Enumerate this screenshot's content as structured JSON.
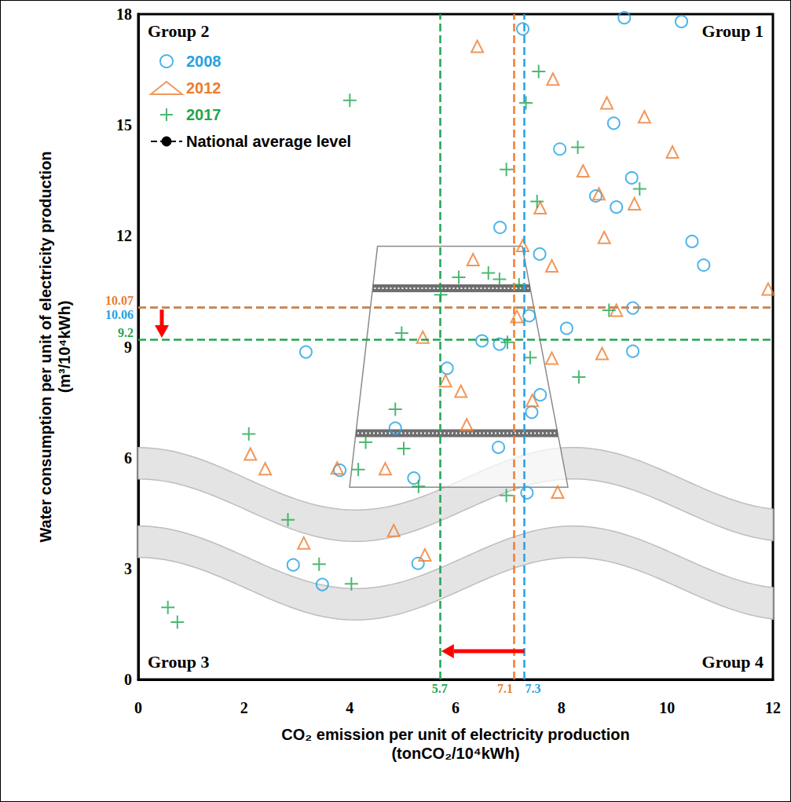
{
  "chart_data": {
    "type": "scatter",
    "x_label": "CO₂ emission per unit of electricity production\n(tonCO₂/10⁴kWh)",
    "y_label": "Water consumption per unit of electricity production\n(m³/10⁴kWh)",
    "xlim": [
      0,
      12
    ],
    "xticks": [
      0,
      2,
      4,
      6,
      8,
      10,
      12
    ],
    "ylim": [
      0,
      18
    ],
    "yticks": [
      0,
      3,
      6,
      9,
      12,
      15,
      18
    ],
    "grid": false,
    "legend": "top-left",
    "annotations": [
      "Group 1",
      "Group 2",
      "Group 3",
      "Group 4"
    ],
    "average_line": {
      "name": "National average level",
      "color": "#000000",
      "line_style": "dashed"
    },
    "series": [
      {
        "name": "2008",
        "color": "#22a3e3",
        "marker": "circle",
        "average_x": 7.3,
        "average_y": 10.06,
        "points": [
          [
            7.27,
            17.6
          ],
          [
            9.19,
            17.9
          ],
          [
            10.27,
            17.8
          ],
          [
            8.99,
            15.05
          ],
          [
            7.97,
            14.35
          ],
          [
            9.33,
            13.57
          ],
          [
            8.65,
            13.08
          ],
          [
            9.04,
            12.78
          ],
          [
            10.47,
            11.85
          ],
          [
            10.69,
            11.21
          ],
          [
            6.84,
            12.23
          ],
          [
            7.59,
            11.51
          ],
          [
            7.39,
            9.84
          ],
          [
            8.1,
            9.5
          ],
          [
            9.35,
            10.05
          ],
          [
            9.35,
            8.88
          ],
          [
            6.5,
            9.16
          ],
          [
            6.83,
            9.07
          ],
          [
            3.17,
            8.86
          ],
          [
            5.84,
            8.42
          ],
          [
            7.6,
            7.7
          ],
          [
            7.44,
            7.23
          ],
          [
            4.86,
            6.8
          ],
          [
            6.81,
            6.28
          ],
          [
            3.81,
            5.66
          ],
          [
            5.21,
            5.45
          ],
          [
            7.35,
            5.05
          ],
          [
            2.93,
            3.1
          ],
          [
            3.48,
            2.57
          ],
          [
            5.29,
            3.14
          ]
        ]
      },
      {
        "name": "2012",
        "color": "#ed7d31",
        "marker": "triangle",
        "average_x": 7.1,
        "average_y": 10.07,
        "points": [
          [
            6.41,
            17.13
          ],
          [
            7.84,
            16.24
          ],
          [
            8.86,
            15.6
          ],
          [
            9.57,
            15.22
          ],
          [
            10.1,
            14.27
          ],
          [
            8.41,
            13.76
          ],
          [
            8.71,
            13.14
          ],
          [
            9.38,
            12.87
          ],
          [
            7.6,
            12.76
          ],
          [
            8.81,
            11.96
          ],
          [
            7.27,
            11.74
          ],
          [
            7.82,
            11.19
          ],
          [
            6.33,
            11.36
          ],
          [
            11.91,
            10.56
          ],
          [
            9.04,
            9.99
          ],
          [
            7.16,
            9.82
          ],
          [
            5.38,
            9.26
          ],
          [
            7.82,
            8.69
          ],
          [
            8.77,
            8.82
          ],
          [
            5.81,
            8.08
          ],
          [
            6.1,
            7.8
          ],
          [
            7.45,
            7.55
          ],
          [
            6.21,
            6.89
          ],
          [
            2.12,
            6.1
          ],
          [
            2.4,
            5.7
          ],
          [
            3.76,
            5.72
          ],
          [
            4.67,
            5.7
          ],
          [
            7.93,
            5.07
          ],
          [
            4.83,
            4.03
          ],
          [
            3.13,
            3.69
          ],
          [
            5.42,
            3.37
          ]
        ]
      },
      {
        "name": "2017",
        "color": "#1fa64f",
        "marker": "plus",
        "average_x": 5.7,
        "average_y": 9.2,
        "points": [
          [
            4.0,
            15.67
          ],
          [
            7.57,
            16.45
          ],
          [
            7.33,
            15.6
          ],
          [
            6.96,
            13.8
          ],
          [
            7.54,
            12.93
          ],
          [
            8.31,
            14.4
          ],
          [
            9.48,
            13.27
          ],
          [
            6.06,
            10.88
          ],
          [
            6.62,
            11.0
          ],
          [
            6.83,
            10.83
          ],
          [
            7.2,
            10.68
          ],
          [
            5.72,
            10.41
          ],
          [
            8.9,
            9.99
          ],
          [
            4.98,
            9.37
          ],
          [
            6.98,
            9.12
          ],
          [
            7.41,
            8.71
          ],
          [
            8.33,
            8.18
          ],
          [
            4.86,
            7.31
          ],
          [
            2.09,
            6.64
          ],
          [
            4.3,
            6.42
          ],
          [
            5.02,
            6.25
          ],
          [
            4.16,
            5.68
          ],
          [
            5.3,
            5.22
          ],
          [
            6.96,
            4.98
          ],
          [
            2.83,
            4.32
          ],
          [
            3.42,
            3.12
          ],
          [
            4.03,
            2.59
          ],
          [
            0.56,
            1.95
          ],
          [
            0.74,
            1.55
          ]
        ]
      }
    ]
  }
}
